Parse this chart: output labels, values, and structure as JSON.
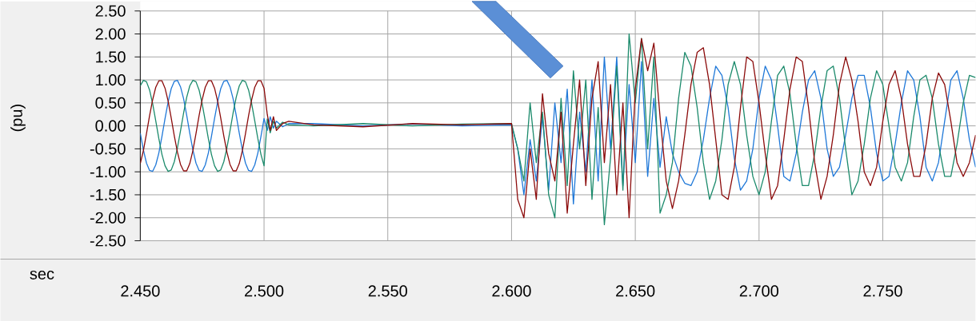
{
  "chart_data": {
    "type": "line",
    "xlabel": "sec",
    "ylabel": "(pu)",
    "x": [
      2.45,
      2.45125,
      2.4525,
      2.45375,
      2.455,
      2.45625,
      2.4575,
      2.45875,
      2.46,
      2.46125,
      2.4625,
      2.46375,
      2.465,
      2.46625,
      2.4675,
      2.46875,
      2.47,
      2.47125,
      2.4725,
      2.47375,
      2.475,
      2.47625,
      2.4775,
      2.47875,
      2.48,
      2.48125,
      2.4825,
      2.48375,
      2.485,
      2.48625,
      2.4875,
      2.48875,
      2.49,
      2.49125,
      2.4925,
      2.49375,
      2.495,
      2.49625,
      2.4975,
      2.49875,
      2.5,
      2.5013,
      2.5025,
      2.5038,
      2.505,
      2.5075,
      2.51,
      2.52,
      2.54,
      2.56,
      2.58,
      2.6,
      2.6025,
      2.605,
      2.6075,
      2.61,
      2.6125,
      2.615,
      2.6175,
      2.62,
      2.6225,
      2.625,
      2.6275,
      2.63,
      2.6325,
      2.635,
      2.6375,
      2.64,
      2.6425,
      2.645,
      2.6475,
      2.65,
      2.6525,
      2.655,
      2.6575,
      2.66,
      2.6625,
      2.665,
      2.6675,
      2.67,
      2.6725,
      2.675,
      2.6775,
      2.68,
      2.6825,
      2.685,
      2.6875,
      2.69,
      2.6925,
      2.695,
      2.6975,
      2.7,
      2.7025,
      2.705,
      2.7075,
      2.71,
      2.7125,
      2.715,
      2.7175,
      2.72,
      2.7225,
      2.725,
      2.7275,
      2.73,
      2.7325,
      2.735,
      2.7375,
      2.74,
      2.7425,
      2.745,
      2.7475,
      2.75,
      2.7525,
      2.755,
      2.7575,
      2.76,
      2.7625,
      2.765,
      2.7675,
      2.77,
      2.7725,
      2.775,
      2.7775,
      2.78,
      2.7825,
      2.785,
      2.7875
    ],
    "series": [
      {
        "color": "#1f78d8",
        "values": [
          -0.16,
          -0.52,
          -0.81,
          -0.97,
          -0.99,
          -0.85,
          -0.59,
          -0.23,
          0.16,
          0.52,
          0.81,
          0.97,
          0.99,
          0.85,
          0.59,
          0.23,
          -0.16,
          -0.52,
          -0.81,
          -0.97,
          -0.99,
          -0.85,
          -0.59,
          -0.23,
          0.16,
          0.52,
          0.81,
          0.97,
          0.99,
          0.85,
          0.59,
          0.23,
          -0.16,
          -0.52,
          -0.81,
          -0.97,
          -0.99,
          -0.85,
          -0.59,
          -0.23,
          0.16,
          -0.1,
          0.2,
          -0.05,
          0.1,
          -0.02,
          0.05,
          0.05,
          0.0,
          0.04,
          0.0,
          0.02,
          -0.5,
          -1.5,
          -0.3,
          -1.2,
          0.2,
          -1.4,
          0.5,
          -0.8,
          0.8,
          -1.7,
          0.3,
          -1.0,
          1.0,
          -1.2,
          1.5,
          -0.5,
          1.5,
          -1.3,
          0.9,
          -0.8,
          1.4,
          -1.1,
          0.6,
          -0.9,
          0.2,
          -0.6,
          -1.0,
          -1.25,
          -1.3,
          -1.0,
          -0.3,
          0.6,
          1.3,
          1.1,
          0.4,
          -0.7,
          -1.4,
          -1.2,
          -0.5,
          0.6,
          1.3,
          1.0,
          0.0,
          -1.1,
          -1.2,
          -0.6,
          0.3,
          1.0,
          1.2,
          0.6,
          -0.5,
          -1.1,
          -0.9,
          -0.2,
          0.6,
          1.1,
          1.1,
          0.4,
          -0.6,
          -1.2,
          -1.1,
          -0.4,
          0.5,
          1.2,
          1.0,
          0.2,
          -0.9,
          -1.2,
          -0.8,
          0.1,
          1.0,
          1.2,
          0.6,
          -0.3,
          -0.9
        ]
      },
      {
        "color": "#1b8a6b",
        "values": [
          0.87,
          0.99,
          0.96,
          0.78,
          0.48,
          0.11,
          -0.28,
          -0.62,
          -0.87,
          -0.99,
          -0.96,
          -0.78,
          -0.48,
          -0.11,
          0.28,
          0.62,
          0.87,
          0.99,
          0.96,
          0.78,
          0.48,
          0.11,
          -0.28,
          -0.62,
          -0.87,
          -0.99,
          -0.96,
          -0.78,
          -0.48,
          -0.11,
          0.28,
          0.62,
          0.87,
          0.99,
          0.96,
          0.78,
          0.48,
          0.11,
          -0.28,
          -0.62,
          -0.87,
          0.15,
          -0.15,
          0.1,
          -0.05,
          0.08,
          0.02,
          0.0,
          0.05,
          0.0,
          0.04,
          0.05,
          -0.5,
          -1.2,
          0.5,
          -0.8,
          0.3,
          -1.5,
          -2.0,
          0.6,
          -1.3,
          1.2,
          -0.5,
          1.0,
          -1.6,
          0.4,
          -2.15,
          -0.7,
          1.3,
          -1.4,
          2.0,
          0.5,
          1.9,
          -0.5,
          1.5,
          -1.9,
          -1.5,
          -0.8,
          0.6,
          1.6,
          1.3,
          0.4,
          -0.8,
          -1.6,
          -1.2,
          -0.3,
          0.9,
          1.4,
          0.9,
          -0.2,
          -1.1,
          -1.5,
          -1.0,
          0.1,
          1.1,
          1.3,
          0.7,
          -0.4,
          -1.3,
          -1.3,
          -0.6,
          0.4,
          1.2,
          1.3,
          0.6,
          -0.5,
          -1.5,
          -1.2,
          -0.4,
          0.6,
          1.2,
          0.9,
          0.0,
          -0.9,
          -1.2,
          -0.8,
          0.2,
          1.0,
          1.1,
          0.6,
          -0.4,
          -1.1,
          -1.1,
          -0.4,
          0.5,
          1.1,
          1.05
        ]
      },
      {
        "color": "#8b0a0a",
        "values": [
          -0.82,
          -0.54,
          -0.17,
          0.22,
          0.57,
          0.84,
          0.98,
          0.98,
          0.82,
          0.54,
          0.17,
          -0.22,
          -0.57,
          -0.84,
          -0.98,
          -0.98,
          -0.82,
          -0.54,
          -0.17,
          0.22,
          0.57,
          0.84,
          0.98,
          0.98,
          0.82,
          0.54,
          0.17,
          -0.22,
          -0.57,
          -0.84,
          -0.98,
          -0.98,
          -0.82,
          -0.54,
          -0.17,
          0.22,
          0.57,
          0.84,
          0.98,
          0.98,
          0.82,
          0.25,
          -0.1,
          0.2,
          -0.1,
          0.05,
          0.1,
          0.02,
          -0.02,
          0.05,
          0.02,
          0.05,
          -1.6,
          -2.0,
          -0.5,
          -1.6,
          0.7,
          -0.6,
          -1.2,
          0.3,
          -1.9,
          -0.4,
          1.0,
          -1.3,
          0.6,
          1.4,
          -0.8,
          0.9,
          -1.5,
          0.5,
          -2.0,
          0.8,
          1.9,
          1.2,
          1.8,
          0.2,
          -1.2,
          -1.8,
          -1.2,
          -0.2,
          0.9,
          1.6,
          1.7,
          0.9,
          -0.3,
          -1.5,
          -1.6,
          -0.9,
          0.4,
          1.5,
          1.4,
          0.5,
          -0.6,
          -1.6,
          -1.3,
          -0.3,
          0.8,
          1.5,
          1.4,
          0.4,
          -0.8,
          -1.6,
          -1.1,
          -0.2,
          0.9,
          1.5,
          1.0,
          0.1,
          -1.0,
          -1.3,
          -0.9,
          0.1,
          0.9,
          1.2,
          0.6,
          -0.4,
          -1.1,
          -1.1,
          -0.4,
          0.6,
          1.15,
          0.9,
          0.1,
          -0.8,
          -1.1,
          -0.8,
          -0.2
        ]
      }
    ],
    "xlim": [
      2.45,
      2.7875
    ],
    "ylim": [
      -2.5,
      2.5
    ],
    "xticks": [
      {
        "value": 2.45,
        "label": "2.450"
      },
      {
        "value": 2.5,
        "label": "2.500"
      },
      {
        "value": 2.55,
        "label": "2.550"
      },
      {
        "value": 2.6,
        "label": "2.600"
      },
      {
        "value": 2.65,
        "label": "2.650"
      },
      {
        "value": 2.7,
        "label": "2.700"
      },
      {
        "value": 2.75,
        "label": "2.750"
      }
    ],
    "yticks": [
      {
        "value": 2.5,
        "label": "2.50"
      },
      {
        "value": 2.0,
        "label": "2.00"
      },
      {
        "value": 1.5,
        "label": "1.50"
      },
      {
        "value": 1.0,
        "label": "1.00"
      },
      {
        "value": 0.5,
        "label": "0.50"
      },
      {
        "value": 0,
        "label": "0.00"
      },
      {
        "value": -0.5,
        "label": "-0.50"
      },
      {
        "value": -1.0,
        "label": "-1.00"
      },
      {
        "value": -1.5,
        "label": "-1.50"
      },
      {
        "value": -2.0,
        "label": "-2.00"
      },
      {
        "value": -2.5,
        "label": "-2.50"
      }
    ],
    "grid": true,
    "marker": "none",
    "line_style": "solid"
  }
}
